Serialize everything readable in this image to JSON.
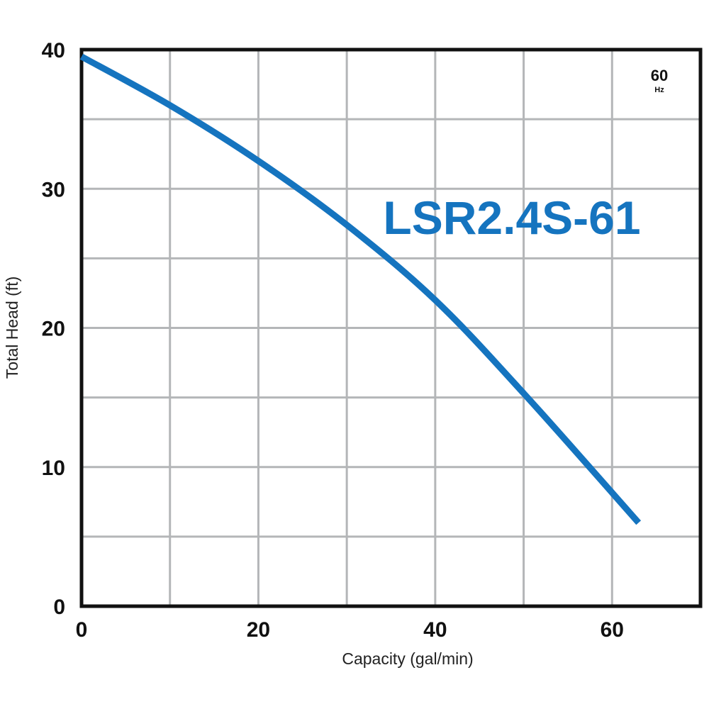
{
  "chart_data": {
    "type": "line",
    "title": "",
    "xlabel": "Capacity  (gal/min)",
    "ylabel": "Total  Head  (ft)",
    "xlim": [
      0,
      70
    ],
    "ylim": [
      0,
      40
    ],
    "x_ticks": [
      0,
      20,
      40,
      60
    ],
    "y_ticks": [
      0,
      10,
      20,
      30,
      40
    ],
    "x_grid_step": 10,
    "y_grid_step": 5,
    "grid": true,
    "frequency_label": {
      "value": "60",
      "unit": "Hz"
    },
    "series": [
      {
        "name": "LSR2.4S-61",
        "color": "#1574bf",
        "x": [
          0,
          10,
          20,
          30,
          40,
          50,
          63
        ],
        "y": [
          39.5,
          36.0,
          32.0,
          27.4,
          22.0,
          15.3,
          6.0
        ]
      }
    ]
  }
}
